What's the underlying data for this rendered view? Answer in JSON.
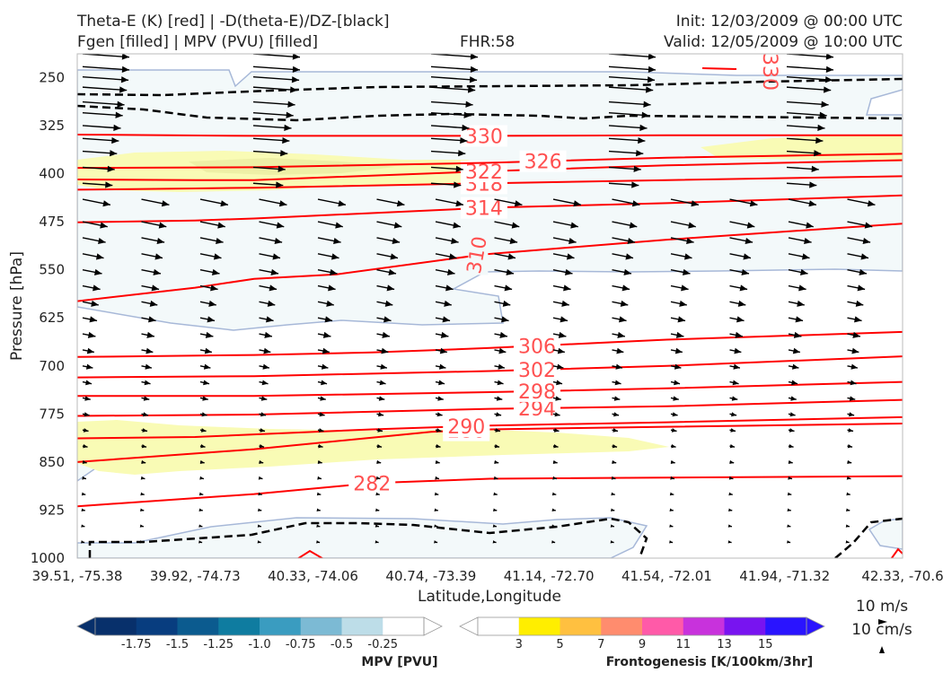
{
  "header": {
    "line1_left": "Theta-E (K) [red] | -D(theta-E)/DZ-[black]",
    "line2_left": "Fgen [filled] | MPV (PVU) [filled]",
    "fhr": "FHR:58",
    "init": "Init: 12/03/2009 @ 00:00 UTC",
    "valid": "Valid: 12/05/2009 @ 10:00 UTC"
  },
  "chart_data": {
    "type": "cross-section",
    "xlabel": "Latitude,Longitude",
    "ylabel": "Pressure [hPa]",
    "ylim": [
      1000,
      200
    ],
    "x_ticks": [
      "39.51, -75.38",
      "39.92, -74.73",
      "40.33, -74.06",
      "40.74, -73.39",
      "41.14, -72.70",
      "41.54, -72.01",
      "41.94, -71.32",
      "42.33, -70.6"
    ],
    "y_ticks": [
      250,
      325,
      400,
      475,
      550,
      625,
      700,
      775,
      850,
      925,
      1000
    ],
    "theta_e_color": "#ff0000",
    "theta_e_label_color": "#ff5050",
    "theta_e_contours": [
      {
        "value": 282,
        "label": "282",
        "x": [
          0,
          3,
          5,
          7,
          14
        ],
        "y": [
          919,
          900,
          883,
          876,
          872
        ]
      },
      {
        "value": 286,
        "label": "286",
        "x": [
          0,
          3,
          5,
          6,
          7,
          10,
          14
        ],
        "y": [
          850,
          830,
          812,
          803,
          799,
          795,
          790
        ]
      },
      {
        "value": 290,
        "label": "290",
        "x": [
          0,
          2,
          5,
          7,
          10,
          14
        ],
        "y": [
          813,
          811,
          799,
          793,
          788,
          780
        ]
      },
      {
        "value": 294,
        "label": "294",
        "x": [
          0,
          3,
          7,
          10,
          14
        ],
        "y": [
          778,
          776,
          767,
          763,
          753
        ]
      },
      {
        "value": 298,
        "label": "298",
        "x": [
          0,
          3,
          7,
          10,
          14
        ],
        "y": [
          747,
          747,
          741,
          735,
          725
        ]
      },
      {
        "value": 302,
        "label": "302",
        "x": [
          0,
          3,
          7,
          10,
          14
        ],
        "y": [
          718,
          716,
          708,
          700,
          685
        ]
      },
      {
        "value": 306,
        "label": "306",
        "x": [
          0,
          3,
          5,
          7,
          10,
          14
        ],
        "y": [
          686,
          683,
          679,
          672,
          659,
          647
        ]
      },
      {
        "value": 310,
        "label": "310",
        "x": [
          0,
          2,
          3,
          4.4,
          6.9,
          10,
          14
        ],
        "y": [
          599,
          578,
          564,
          557,
          526,
          503,
          478
        ]
      },
      {
        "value": 314,
        "label": "314",
        "x": [
          0,
          2,
          3,
          7,
          10,
          14
        ],
        "y": [
          476,
          473,
          470,
          453,
          446,
          434
        ]
      },
      {
        "value": 318,
        "label": "318",
        "x": [
          0,
          2,
          3,
          7,
          10,
          14
        ],
        "y": [
          425,
          423,
          422,
          415,
          410,
          404
        ]
      },
      {
        "value": 322,
        "label": "322",
        "x": [
          0,
          2,
          3,
          7,
          10,
          14
        ],
        "y": [
          409,
          410,
          410,
          396,
          387,
          379
        ]
      },
      {
        "value": 326,
        "label": "326",
        "x": [
          0,
          3,
          7,
          10,
          14
        ],
        "y": [
          391,
          390,
          383,
          375,
          369
        ]
      },
      {
        "value": 330,
        "label": "330",
        "x": [
          0,
          3,
          7,
          10,
          14
        ],
        "y": [
          339,
          341,
          341,
          340,
          340
        ]
      }
    ],
    "colorbar_mpv": {
      "title": "MPV [PVU]",
      "labels": [
        "-1.75",
        "-1.5",
        "-1.25",
        "-1.0",
        "-0.75",
        "-0.5",
        "-0.25"
      ],
      "colors": [
        "#08306b",
        "#083d7f",
        "#0b5b8f",
        "#0f7ca0",
        "#3a9cc0",
        "#7cbad4",
        "#bddde8",
        "#ffffff"
      ]
    },
    "colorbar_fgen": {
      "title": "Frontogenesis [K/100km/3hr]",
      "labels": [
        "3",
        "5",
        "7",
        "9",
        "11",
        "13",
        "15"
      ],
      "colors": [
        "#ffffff",
        "#ffee00",
        "#ffc040",
        "#ff8c6e",
        "#ff5aa8",
        "#c832dc",
        "#7814f0",
        "#2a14ff"
      ]
    },
    "wind_scale": {
      "horizontal": "10 m/s",
      "vertical": "10 cm/s"
    }
  }
}
